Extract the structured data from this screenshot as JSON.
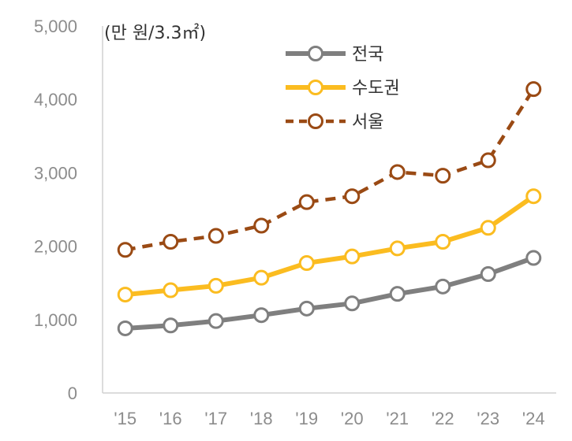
{
  "chart_data": {
    "type": "line",
    "title": "",
    "unit_label": "(만 원/3.3㎡)",
    "xlabel": "",
    "ylabel": "",
    "categories": [
      "'15",
      "'16",
      "'17",
      "'18",
      "'19",
      "'20",
      "'21",
      "'22",
      "'23",
      "'24"
    ],
    "ylim": [
      0,
      5000
    ],
    "yticks": [
      "0",
      "1,000",
      "2,000",
      "3,000",
      "4,000",
      "5,000"
    ],
    "grid": false,
    "legend_position": "top-center",
    "series": [
      {
        "name": "전국",
        "values": [
          880,
          920,
          980,
          1060,
          1150,
          1220,
          1350,
          1450,
          1620,
          1840
        ],
        "color": "#7f7f7f",
        "style": "solid"
      },
      {
        "name": "수도권",
        "values": [
          1340,
          1400,
          1460,
          1570,
          1770,
          1860,
          1970,
          2060,
          2250,
          2680
        ],
        "color": "#fbbc20",
        "style": "solid"
      },
      {
        "name": "서울",
        "values": [
          1950,
          2060,
          2140,
          2280,
          2600,
          2680,
          3010,
          2960,
          3170,
          4140
        ],
        "color": "#9a4a14",
        "style": "dashed"
      }
    ]
  }
}
